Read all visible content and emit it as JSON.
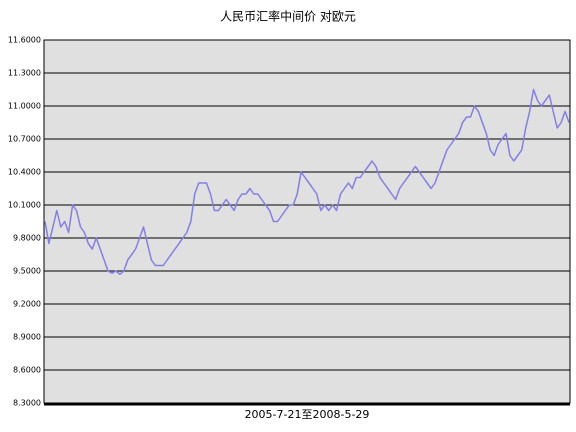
{
  "chart_data": {
    "type": "line",
    "title": "人民币汇率中间价 对欧元",
    "x_label": "2005-7-21至2008-5-29",
    "color": "#8080e8",
    "grid": true,
    "ylim": [
      8.3,
      11.6
    ],
    "yticks": [
      {
        "value": 8.3,
        "label": "8.3000"
      },
      {
        "value": 8.6,
        "label": "8.6000"
      },
      {
        "value": 8.9,
        "label": "8.9000"
      },
      {
        "value": 9.2,
        "label": "9.2000"
      },
      {
        "value": 9.5,
        "label": "9.5000"
      },
      {
        "value": 9.8,
        "label": "9.8000"
      },
      {
        "value": 10.1,
        "label": "10.1000"
      },
      {
        "value": 10.4,
        "label": "10.4000"
      },
      {
        "value": 10.7,
        "label": "10.7000"
      },
      {
        "value": 11.0,
        "label": "11.0000"
      },
      {
        "value": 11.3,
        "label": "11.3000"
      },
      {
        "value": 11.6,
        "label": "11.6000"
      }
    ],
    "values": [
      9.95,
      9.75,
      9.9,
      10.05,
      9.9,
      9.95,
      9.85,
      10.1,
      10.05,
      9.9,
      9.85,
      9.75,
      9.7,
      9.8,
      9.7,
      9.6,
      9.5,
      9.48,
      9.5,
      9.47,
      9.5,
      9.6,
      9.65,
      9.7,
      9.8,
      9.9,
      9.75,
      9.6,
      9.55,
      9.55,
      9.55,
      9.6,
      9.65,
      9.7,
      9.75,
      9.8,
      9.85,
      9.95,
      10.2,
      10.3,
      10.3,
      10.3,
      10.2,
      10.05,
      10.05,
      10.1,
      10.15,
      10.1,
      10.05,
      10.15,
      10.2,
      10.2,
      10.25,
      10.2,
      10.2,
      10.15,
      10.1,
      10.05,
      9.95,
      9.95,
      10.0,
      10.05,
      10.1,
      10.1,
      10.2,
      10.4,
      10.35,
      10.3,
      10.25,
      10.2,
      10.05,
      10.1,
      10.05,
      10.1,
      10.05,
      10.2,
      10.25,
      10.3,
      10.25,
      10.35,
      10.35,
      10.4,
      10.45,
      10.5,
      10.45,
      10.35,
      10.3,
      10.25,
      10.2,
      10.15,
      10.25,
      10.3,
      10.35,
      10.4,
      10.45,
      10.4,
      10.35,
      10.3,
      10.25,
      10.3,
      10.4,
      10.5,
      10.6,
      10.65,
      10.7,
      10.75,
      10.85,
      10.9,
      10.9,
      11.0,
      10.95,
      10.85,
      10.75,
      10.6,
      10.55,
      10.65,
      10.7,
      10.75,
      10.55,
      10.5,
      10.55,
      10.6,
      10.8,
      10.95,
      11.15,
      11.05,
      11.0,
      11.05,
      11.1,
      10.95,
      10.8,
      10.85,
      10.95,
      10.85
    ]
  }
}
